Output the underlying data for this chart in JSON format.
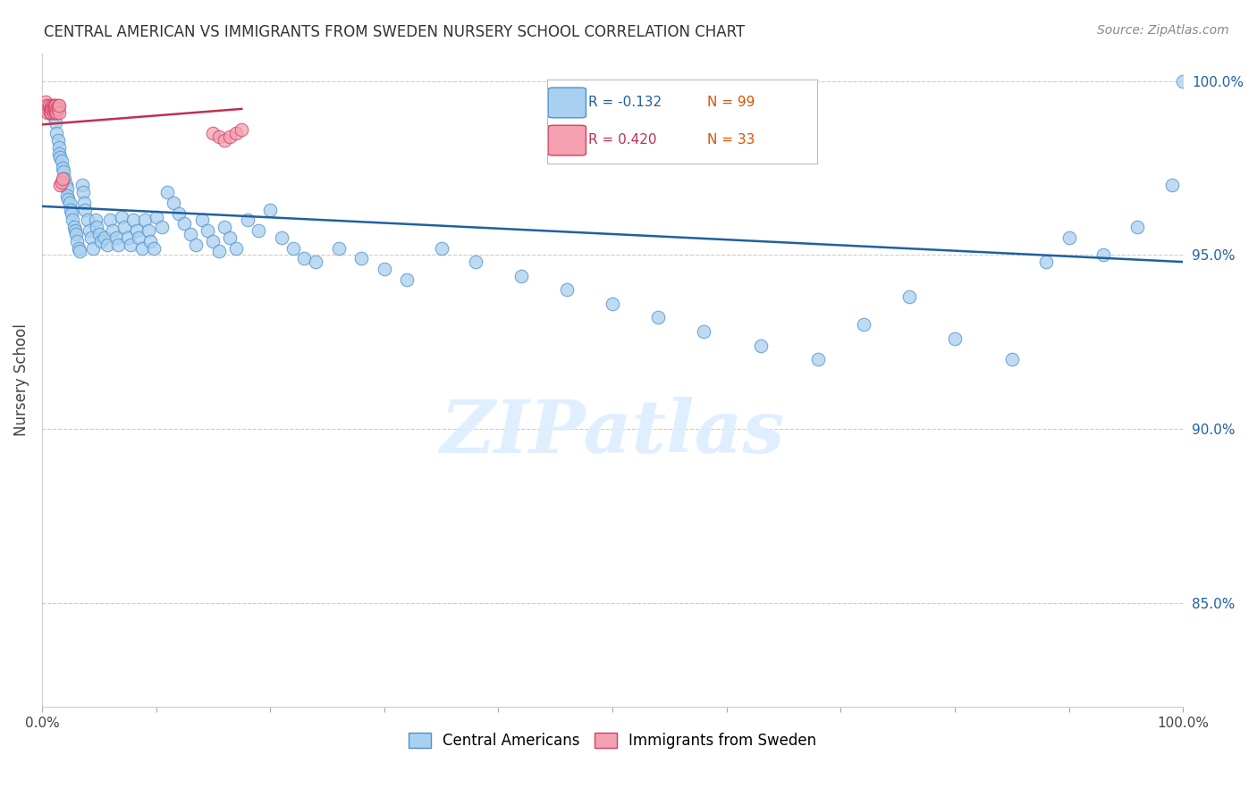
{
  "title": "CENTRAL AMERICAN VS IMMIGRANTS FROM SWEDEN NURSERY SCHOOL CORRELATION CHART",
  "source": "Source: ZipAtlas.com",
  "ylabel": "Nursery School",
  "ylabel_right_ticks": [
    "100.0%",
    "95.0%",
    "90.0%",
    "85.0%"
  ],
  "ylabel_right_vals": [
    1.0,
    0.95,
    0.9,
    0.85
  ],
  "legend_blue_r": "R = -0.132",
  "legend_blue_n": "N = 99",
  "legend_pink_r": "R = 0.420",
  "legend_pink_n": "N = 33",
  "legend_label_blue": "Central Americans",
  "legend_label_pink": "Immigrants from Sweden",
  "blue_color": "#A8D0F0",
  "pink_color": "#F4A0B0",
  "blue_edge_color": "#5090C8",
  "pink_edge_color": "#D04060",
  "blue_line_color": "#2060A0",
  "pink_line_color": "#C03050",
  "watermark": "ZIPatlas",
  "blue_scatter_x": [
    0.01,
    0.012,
    0.013,
    0.014,
    0.015,
    0.015,
    0.016,
    0.017,
    0.018,
    0.019,
    0.02,
    0.021,
    0.022,
    0.022,
    0.023,
    0.024,
    0.025,
    0.026,
    0.027,
    0.028,
    0.029,
    0.03,
    0.031,
    0.032,
    0.033,
    0.035,
    0.036,
    0.037,
    0.038,
    0.04,
    0.042,
    0.043,
    0.045,
    0.047,
    0.048,
    0.05,
    0.052,
    0.055,
    0.057,
    0.06,
    0.062,
    0.065,
    0.067,
    0.07,
    0.072,
    0.075,
    0.078,
    0.08,
    0.083,
    0.085,
    0.088,
    0.09,
    0.093,
    0.095,
    0.098,
    0.1,
    0.105,
    0.11,
    0.115,
    0.12,
    0.125,
    0.13,
    0.135,
    0.14,
    0.145,
    0.15,
    0.155,
    0.16,
    0.165,
    0.17,
    0.18,
    0.19,
    0.2,
    0.21,
    0.22,
    0.23,
    0.24,
    0.26,
    0.28,
    0.3,
    0.32,
    0.35,
    0.38,
    0.42,
    0.46,
    0.5,
    0.54,
    0.58,
    0.63,
    0.68,
    0.72,
    0.76,
    0.8,
    0.85,
    0.88,
    0.9,
    0.93,
    0.96,
    0.99,
    1.0
  ],
  "blue_scatter_y": [
    0.99,
    0.988,
    0.985,
    0.983,
    0.981,
    0.979,
    0.978,
    0.977,
    0.975,
    0.974,
    0.972,
    0.97,
    0.969,
    0.967,
    0.966,
    0.965,
    0.963,
    0.962,
    0.96,
    0.958,
    0.957,
    0.956,
    0.954,
    0.952,
    0.951,
    0.97,
    0.968,
    0.965,
    0.963,
    0.96,
    0.957,
    0.955,
    0.952,
    0.96,
    0.958,
    0.956,
    0.954,
    0.955,
    0.953,
    0.96,
    0.957,
    0.955,
    0.953,
    0.961,
    0.958,
    0.955,
    0.953,
    0.96,
    0.957,
    0.955,
    0.952,
    0.96,
    0.957,
    0.954,
    0.952,
    0.961,
    0.958,
    0.968,
    0.965,
    0.962,
    0.959,
    0.956,
    0.953,
    0.96,
    0.957,
    0.954,
    0.951,
    0.958,
    0.955,
    0.952,
    0.96,
    0.957,
    0.963,
    0.955,
    0.952,
    0.949,
    0.948,
    0.952,
    0.949,
    0.946,
    0.943,
    0.952,
    0.948,
    0.944,
    0.94,
    0.936,
    0.932,
    0.928,
    0.924,
    0.92,
    0.93,
    0.938,
    0.926,
    0.92,
    0.948,
    0.955,
    0.95,
    0.958,
    0.97,
    1.0
  ],
  "pink_scatter_x": [
    0.003,
    0.004,
    0.005,
    0.005,
    0.006,
    0.007,
    0.007,
    0.008,
    0.008,
    0.009,
    0.009,
    0.01,
    0.01,
    0.01,
    0.011,
    0.011,
    0.012,
    0.012,
    0.013,
    0.013,
    0.014,
    0.014,
    0.015,
    0.015,
    0.016,
    0.017,
    0.018,
    0.15,
    0.155,
    0.16,
    0.165,
    0.17,
    0.175
  ],
  "pink_scatter_y": [
    0.994,
    0.993,
    0.992,
    0.991,
    0.993,
    0.992,
    0.991,
    0.992,
    0.991,
    0.993,
    0.992,
    0.993,
    0.992,
    0.991,
    0.993,
    0.992,
    0.991,
    0.993,
    0.992,
    0.991,
    0.993,
    0.992,
    0.991,
    0.993,
    0.97,
    0.971,
    0.972,
    0.985,
    0.984,
    0.983,
    0.984,
    0.985,
    0.986
  ],
  "blue_line_x0": 0.0,
  "blue_line_x1": 1.0,
  "blue_line_y0": 0.964,
  "blue_line_y1": 0.948,
  "pink_line_x0": 0.0,
  "pink_line_x1": 0.175,
  "pink_line_y0": 0.9875,
  "pink_line_y1": 0.992,
  "xlim": [
    0.0,
    1.0
  ],
  "ylim": [
    0.82,
    1.008
  ]
}
